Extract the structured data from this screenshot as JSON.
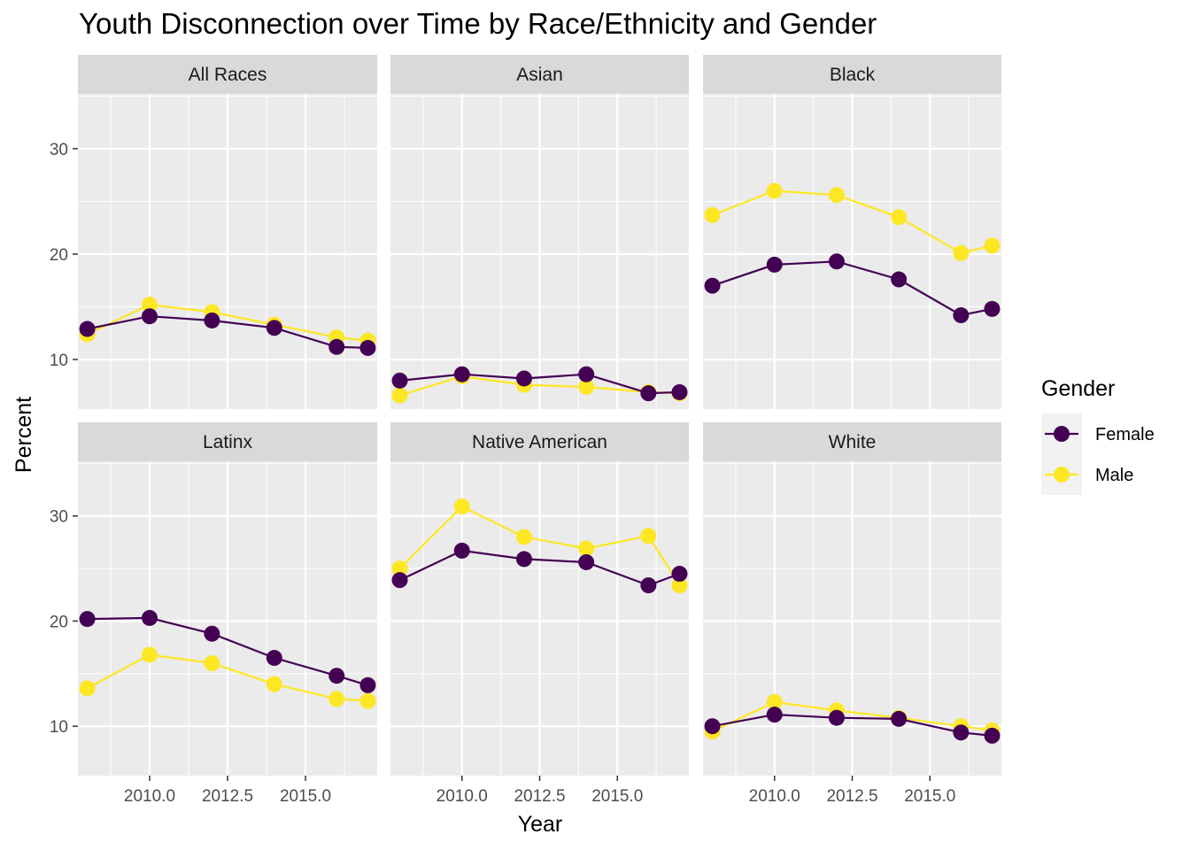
{
  "chart_data": {
    "type": "line",
    "title": "Youth Disconnection over Time by Race/Ethnicity and Gender",
    "xlabel": "Year",
    "ylabel": "Percent",
    "xlim": [
      2007.7,
      2017.3
    ],
    "ylim": [
      5.3,
      35.2
    ],
    "x_ticks": [
      2010,
      2012.5,
      2015
    ],
    "x_tick_labels": [
      "2010.0",
      "2012.5",
      "2015.0"
    ],
    "y_ticks": [
      10,
      20,
      30
    ],
    "y_tick_labels": [
      "10",
      "20",
      "30"
    ],
    "grid": true,
    "legend": {
      "title": "Gender",
      "position": "right",
      "entries": [
        {
          "name": "Female",
          "color": "#440154"
        },
        {
          "name": "Male",
          "color": "#FDE725"
        }
      ]
    },
    "x": [
      2008,
      2010,
      2012,
      2014,
      2016,
      2017
    ],
    "facets": [
      {
        "name": "All Races",
        "series": [
          {
            "name": "Female",
            "values": [
              12.9,
              14.1,
              13.7,
              13.0,
              11.2,
              11.1
            ]
          },
          {
            "name": "Male",
            "values": [
              12.4,
              15.2,
              14.5,
              13.3,
              12.1,
              11.8
            ]
          }
        ]
      },
      {
        "name": "Asian",
        "series": [
          {
            "name": "Female",
            "values": [
              8.0,
              8.6,
              8.2,
              8.6,
              6.8,
              6.9
            ]
          },
          {
            "name": "Male",
            "values": [
              6.6,
              8.4,
              7.6,
              7.4,
              6.9,
              6.8
            ]
          }
        ]
      },
      {
        "name": "Black",
        "series": [
          {
            "name": "Female",
            "values": [
              17.0,
              19.0,
              19.3,
              17.6,
              14.2,
              14.8
            ]
          },
          {
            "name": "Male",
            "values": [
              23.7,
              26.0,
              25.6,
              23.5,
              20.1,
              20.8
            ]
          }
        ]
      },
      {
        "name": "Latinx",
        "series": [
          {
            "name": "Female",
            "values": [
              20.2,
              20.3,
              18.8,
              16.5,
              14.8,
              13.9
            ]
          },
          {
            "name": "Male",
            "values": [
              13.6,
              16.8,
              16.0,
              14.0,
              12.6,
              12.4
            ]
          }
        ]
      },
      {
        "name": "Native American",
        "series": [
          {
            "name": "Female",
            "values": [
              23.9,
              26.7,
              25.9,
              25.6,
              23.4,
              24.5
            ]
          },
          {
            "name": "Male",
            "values": [
              25.0,
              30.9,
              28.0,
              26.9,
              28.1,
              23.4
            ]
          }
        ]
      },
      {
        "name": "White",
        "series": [
          {
            "name": "Female",
            "values": [
              10.0,
              11.1,
              10.8,
              10.7,
              9.4,
              9.1
            ]
          },
          {
            "name": "Male",
            "values": [
              9.5,
              12.3,
              11.5,
              10.8,
              10.0,
              9.6
            ]
          }
        ]
      }
    ]
  }
}
